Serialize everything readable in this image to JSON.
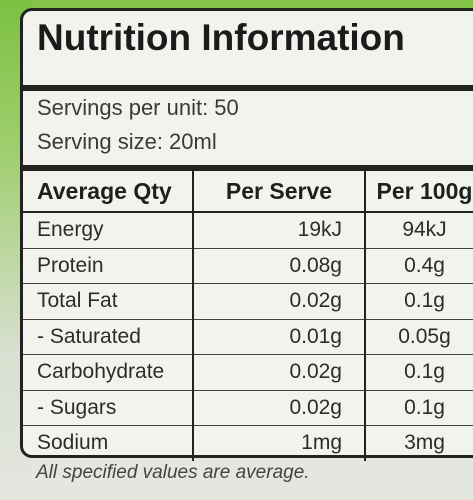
{
  "label": {
    "title": "Nutrition Information",
    "servings_per_unit": "Servings per unit: 50",
    "serving_size": "Serving size: 20ml"
  },
  "table": {
    "headers": [
      "Average Qty",
      "Per Serve",
      "Per 100g"
    ],
    "rows": [
      {
        "name": "Energy",
        "per_serve": "19kJ",
        "per_100g": "94kJ"
      },
      {
        "name": "Protein",
        "per_serve": "0.08g",
        "per_100g": "0.4g"
      },
      {
        "name": "Total Fat",
        "per_serve": "0.02g",
        "per_100g": "0.1g"
      },
      {
        "name": "- Saturated",
        "per_serve": "0.01g",
        "per_100g": "0.05g"
      },
      {
        "name": "Carbohydrate",
        "per_serve": "0.02g",
        "per_100g": "0.1g"
      },
      {
        "name": "- Sugars",
        "per_serve": "0.02g",
        "per_100g": "0.1g"
      },
      {
        "name": "Sodium",
        "per_serve": "1mg",
        "per_100g": "3mg"
      }
    ]
  },
  "footer": "All specified values are average."
}
